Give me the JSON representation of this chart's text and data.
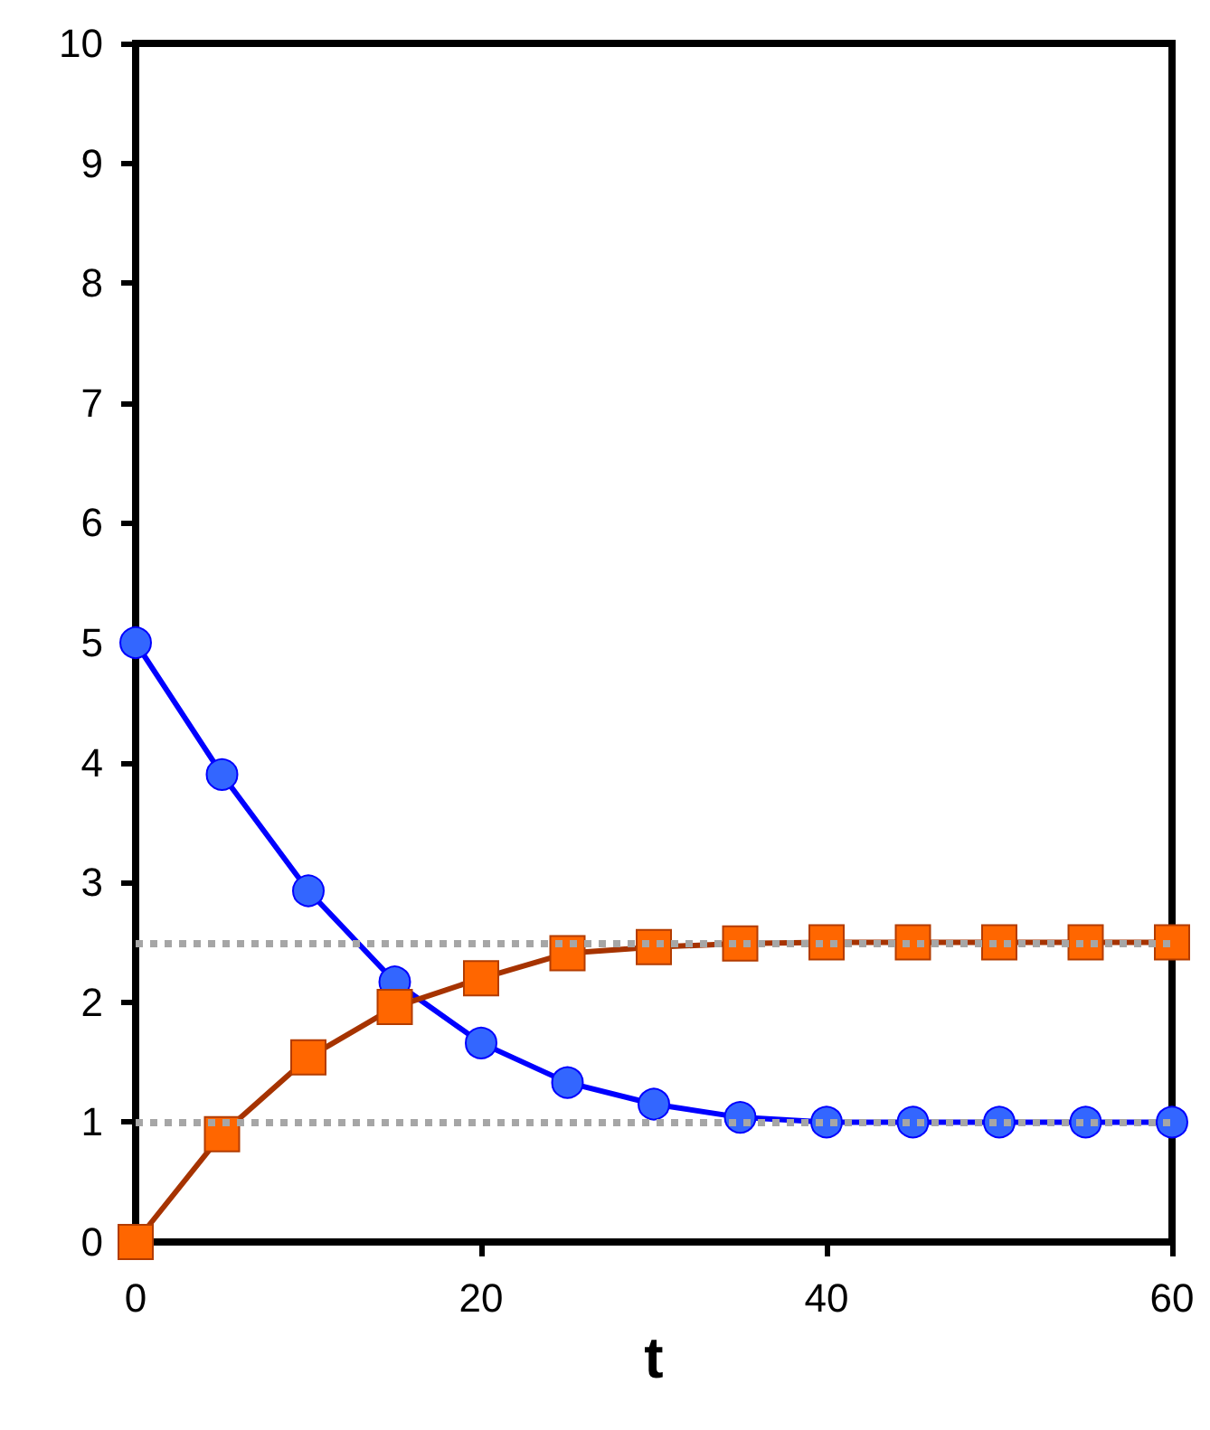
{
  "chart_data": {
    "type": "line",
    "xlabel": "t",
    "x": [
      0,
      5,
      10,
      15,
      20,
      25,
      30,
      35,
      40,
      45,
      50,
      55,
      60
    ],
    "series": [
      {
        "color": "#3366ff",
        "marker": "circle",
        "values": [
          5.0,
          3.9,
          2.93,
          2.17,
          1.66,
          1.33,
          1.15,
          1.04,
          1.0,
          1.0,
          1.0,
          1.0,
          1.0
        ]
      },
      {
        "color": "#ff6600",
        "marker": "square",
        "values": [
          0,
          0.9,
          1.54,
          1.96,
          2.2,
          2.41,
          2.46,
          2.49,
          2.5,
          2.5,
          2.5,
          2.5,
          2.5
        ]
      }
    ],
    "xlim": [
      0,
      60
    ],
    "xticks": [
      0,
      20,
      40,
      60
    ],
    "ylim": [
      0,
      10
    ],
    "yticks": [
      0,
      1,
      2,
      3,
      4,
      5,
      6,
      7,
      8,
      9,
      10
    ],
    "ref_lines": [
      {
        "axis": "y",
        "value": 2.5,
        "color": "#a6a6a6",
        "line_style": "dotted"
      },
      {
        "axis": "y",
        "value": 1,
        "color": "#a6a6a6",
        "line_style": "dotted"
      }
    ],
    "grid": false,
    "line_style": "solid"
  }
}
